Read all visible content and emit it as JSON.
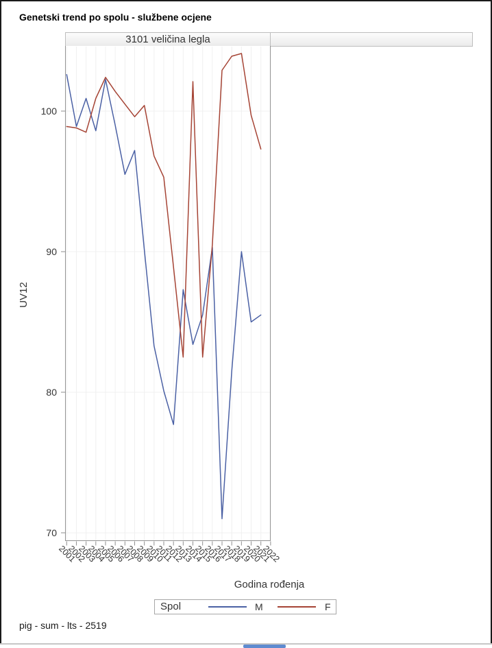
{
  "page": {
    "title": "Genetski trend po spolu - službene ocjene",
    "footer": "pig - sum - lts - 2519"
  },
  "panel": {
    "header": "3101 veličina legla"
  },
  "legend": {
    "title": "Spol",
    "series": [
      {
        "label": "M",
        "color": "#4a60a4"
      },
      {
        "label": "F",
        "color": "#a54334"
      }
    ]
  },
  "colors": {
    "grid": "#f0f0f0",
    "frame": "#919191",
    "tick": "#8e8e8e",
    "text": "#333333",
    "scrollbar_thumb": "#5f8bd0"
  },
  "chart_data": {
    "type": "line",
    "title": "Genetski trend po spolu - službene ocjene",
    "panel_label": "3101 veličina legla",
    "xlabel": "Godina rođenja",
    "ylabel": "UV12",
    "legend_title": "Spol",
    "legend_position": "bottom",
    "grid": true,
    "x_ticks": [
      2001,
      2002,
      2003,
      2004,
      2005,
      2006,
      2007,
      2008,
      2009,
      2010,
      2011,
      2012,
      2013,
      2014,
      2015,
      2016,
      2017,
      2018,
      2019,
      2020,
      2021,
      2022
    ],
    "y_ticks": [
      70,
      80,
      90,
      100
    ],
    "ylim": [
      69.4,
      104.7
    ],
    "x": [
      2001,
      2002,
      2003,
      2004,
      2005,
      2006,
      2007,
      2008,
      2009,
      2010,
      2011,
      2012,
      2013,
      2014,
      2015,
      2016,
      2017,
      2018,
      2019,
      2020,
      2021
    ],
    "series": [
      {
        "name": "M",
        "color": "#4a60a4",
        "values": [
          102.6,
          98.9,
          100.9,
          98.6,
          102.25,
          99.0,
          95.5,
          97.2,
          90.1,
          83.3,
          80.1,
          77.7,
          87.3,
          83.4,
          85.5,
          90.3,
          71.0,
          81.5,
          90.0,
          85.0,
          85.5
        ]
      },
      {
        "name": "F",
        "color": "#a54334",
        "values": [
          98.9,
          98.8,
          98.5,
          100.9,
          102.4,
          101.4,
          100.5,
          99.6,
          100.4,
          96.8,
          95.3,
          88.9,
          82.5,
          102.1,
          82.5,
          90.5,
          102.9,
          103.9,
          104.1,
          99.7,
          97.3
        ]
      }
    ]
  }
}
